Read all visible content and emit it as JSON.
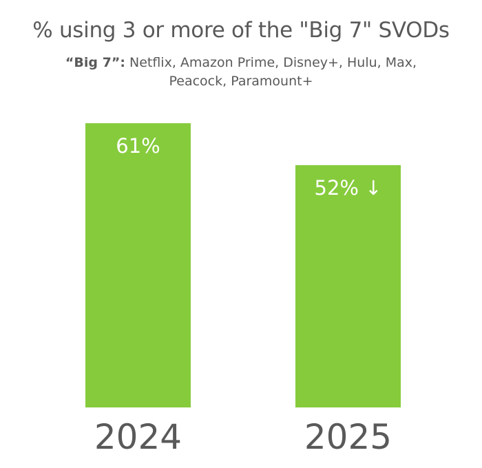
{
  "chart_data": {
    "type": "bar",
    "title": "% using 3 or more of the \"Big 7\" SVODs",
    "subtitle_lead": "“Big 7”:",
    "subtitle_rest": " Netflix, Amazon Prime, Disney+, Hulu, Max, Peacock, Paramount+",
    "categories": [
      "2024",
      "2025"
    ],
    "values": [
      61,
      52
    ],
    "value_labels": [
      "61%",
      "52% ↓"
    ],
    "ylim": [
      0,
      70
    ],
    "grid": false,
    "legend": "none",
    "bar_color": "#86cb3c",
    "label_color": "#ffffff",
    "category_label_color": "#595959"
  }
}
